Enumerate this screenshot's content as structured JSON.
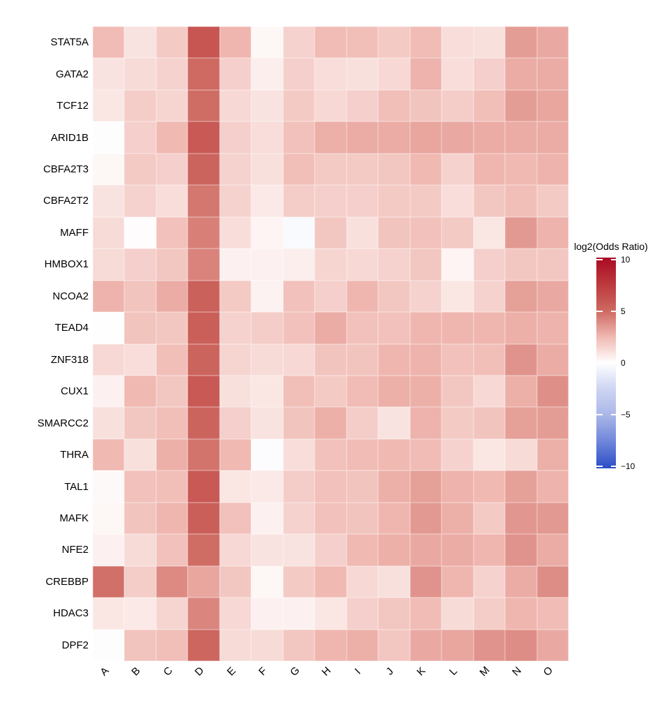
{
  "chart_data": {
    "type": "heatmap",
    "title": "",
    "value_label": "log2(Odds Ratio)",
    "rows": [
      "STAT5A",
      "GATA2",
      "TCF12",
      "ARID1B",
      "CBFA2T3",
      "CBFA2T2",
      "MAFF",
      "HMBOX1",
      "NCOA2",
      "TEAD4",
      "ZNF318",
      "CUX1",
      "SMARCC2",
      "THRA",
      "TAL1",
      "MAFK",
      "NFE2",
      "CREBBP",
      "HDAC3",
      "DPF2"
    ],
    "columns": [
      "A",
      "B",
      "C",
      "D",
      "E",
      "F",
      "G",
      "H",
      "I",
      "J",
      "K",
      "L",
      "M",
      "N",
      "O"
    ],
    "values": [
      [
        2.4,
        1.0,
        1.9,
        6.1,
        2.6,
        0.3,
        1.6,
        2.4,
        2.3,
        1.9,
        2.4,
        1.2,
        1.1,
        3.4,
        3.0
      ],
      [
        1.0,
        1.3,
        1.6,
        5.0,
        1.7,
        0.6,
        1.7,
        1.2,
        1.1,
        1.4,
        2.7,
        1.2,
        1.7,
        2.9,
        2.9
      ],
      [
        0.9,
        1.8,
        1.5,
        4.9,
        1.4,
        1.0,
        1.9,
        1.4,
        1.7,
        2.3,
        2.1,
        1.8,
        2.3,
        3.4,
        3.1
      ],
      [
        -0.1,
        1.7,
        2.5,
        5.9,
        1.7,
        1.2,
        2.2,
        2.8,
        2.9,
        2.9,
        3.1,
        3.0,
        2.9,
        2.9,
        2.9
      ],
      [
        0.3,
        1.9,
        1.7,
        5.3,
        1.6,
        1.1,
        2.3,
        1.9,
        1.9,
        2.0,
        2.5,
        1.6,
        2.6,
        2.5,
        2.7
      ],
      [
        1.0,
        1.6,
        1.2,
        4.6,
        1.6,
        0.8,
        1.8,
        1.7,
        1.7,
        1.9,
        1.9,
        1.2,
        2.0,
        2.3,
        1.9
      ],
      [
        1.3,
        0.1,
        2.2,
        4.3,
        1.2,
        0.4,
        -0.3,
        2.0,
        1.1,
        2.1,
        2.2,
        1.9,
        0.9,
        3.5,
        2.7
      ],
      [
        1.3,
        1.7,
        2.0,
        4.2,
        0.5,
        0.5,
        0.6,
        1.5,
        1.4,
        1.6,
        2.0,
        0.4,
        1.7,
        2.0,
        2.0
      ],
      [
        2.7,
        2.1,
        2.9,
        5.5,
        1.9,
        0.45,
        2.2,
        1.7,
        2.6,
        2.0,
        1.6,
        0.9,
        1.6,
        3.3,
        3.0
      ],
      [
        -0.05,
        2.1,
        2.0,
        5.6,
        1.6,
        1.8,
        2.2,
        2.9,
        2.2,
        2.2,
        2.6,
        2.6,
        2.6,
        2.8,
        2.7
      ],
      [
        1.4,
        1.2,
        2.3,
        5.3,
        1.5,
        1.3,
        1.4,
        2.1,
        2.1,
        2.6,
        2.7,
        2.2,
        2.3,
        3.7,
        2.9
      ],
      [
        0.5,
        2.5,
        2.0,
        5.9,
        1.1,
        0.9,
        2.3,
        1.9,
        2.4,
        2.8,
        2.8,
        2.0,
        1.4,
        2.8,
        3.8
      ],
      [
        1.1,
        2.0,
        2.3,
        5.3,
        1.7,
        1.0,
        2.1,
        2.8,
        1.8,
        1.0,
        2.7,
        1.9,
        2.1,
        3.3,
        3.4
      ],
      [
        2.5,
        1.1,
        2.8,
        4.7,
        2.5,
        -0.15,
        1.2,
        2.2,
        2.4,
        2.5,
        2.4,
        1.6,
        0.9,
        1.3,
        2.8
      ],
      [
        0.2,
        2.2,
        2.3,
        5.9,
        0.9,
        0.8,
        1.8,
        2.2,
        2.1,
        2.8,
        3.3,
        2.7,
        2.5,
        3.3,
        2.7
      ],
      [
        0.3,
        2.1,
        2.6,
        5.6,
        2.2,
        0.5,
        1.6,
        2.2,
        2.1,
        2.6,
        3.5,
        2.8,
        1.9,
        3.6,
        3.5
      ],
      [
        0.5,
        1.3,
        2.2,
        4.9,
        1.4,
        1.0,
        1.0,
        1.7,
        2.5,
        2.8,
        3.0,
        2.9,
        2.6,
        3.7,
        2.9
      ],
      [
        4.8,
        1.8,
        4.0,
        3.1,
        2.0,
        0.3,
        1.9,
        2.5,
        1.4,
        1.1,
        3.7,
        2.6,
        1.6,
        2.9,
        3.9
      ],
      [
        0.9,
        0.8,
        1.5,
        4.1,
        1.4,
        0.5,
        0.5,
        0.9,
        1.7,
        2.0,
        2.4,
        1.3,
        1.8,
        2.6,
        2.4
      ],
      [
        -0.1,
        2.1,
        2.3,
        5.2,
        1.3,
        1.3,
        2.0,
        2.6,
        2.8,
        2.0,
        3.0,
        3.1,
        3.7,
        3.9,
        3.0
      ]
    ],
    "colorscale": {
      "domain": [
        -10.2,
        10.2
      ],
      "stops": [
        {
          "value": -10,
          "color": "#2E52C8"
        },
        {
          "value": -7.5,
          "color": "#7188DB"
        },
        {
          "value": -5,
          "color": "#ABB8E8"
        },
        {
          "value": -2.5,
          "color": "#CDD5F2"
        },
        {
          "value": 0,
          "color": "#FFFFFF"
        },
        {
          "value": 2.5,
          "color": "#F0B9B2"
        },
        {
          "value": 5,
          "color": "#CE6A62"
        },
        {
          "value": 7.5,
          "color": "#BD3B3E"
        },
        {
          "value": 10,
          "color": "#AC0E25"
        }
      ]
    },
    "legend": {
      "title": "log2(Odds Ratio)",
      "ticks": [
        {
          "value": 10,
          "label": "10"
        },
        {
          "value": 5,
          "label": "5"
        },
        {
          "value": 0,
          "label": "0"
        },
        {
          "value": -5,
          "label": "−5"
        },
        {
          "value": -10,
          "label": "−10"
        }
      ],
      "position": "right"
    },
    "x_tick_angle": 45,
    "grid": false
  }
}
